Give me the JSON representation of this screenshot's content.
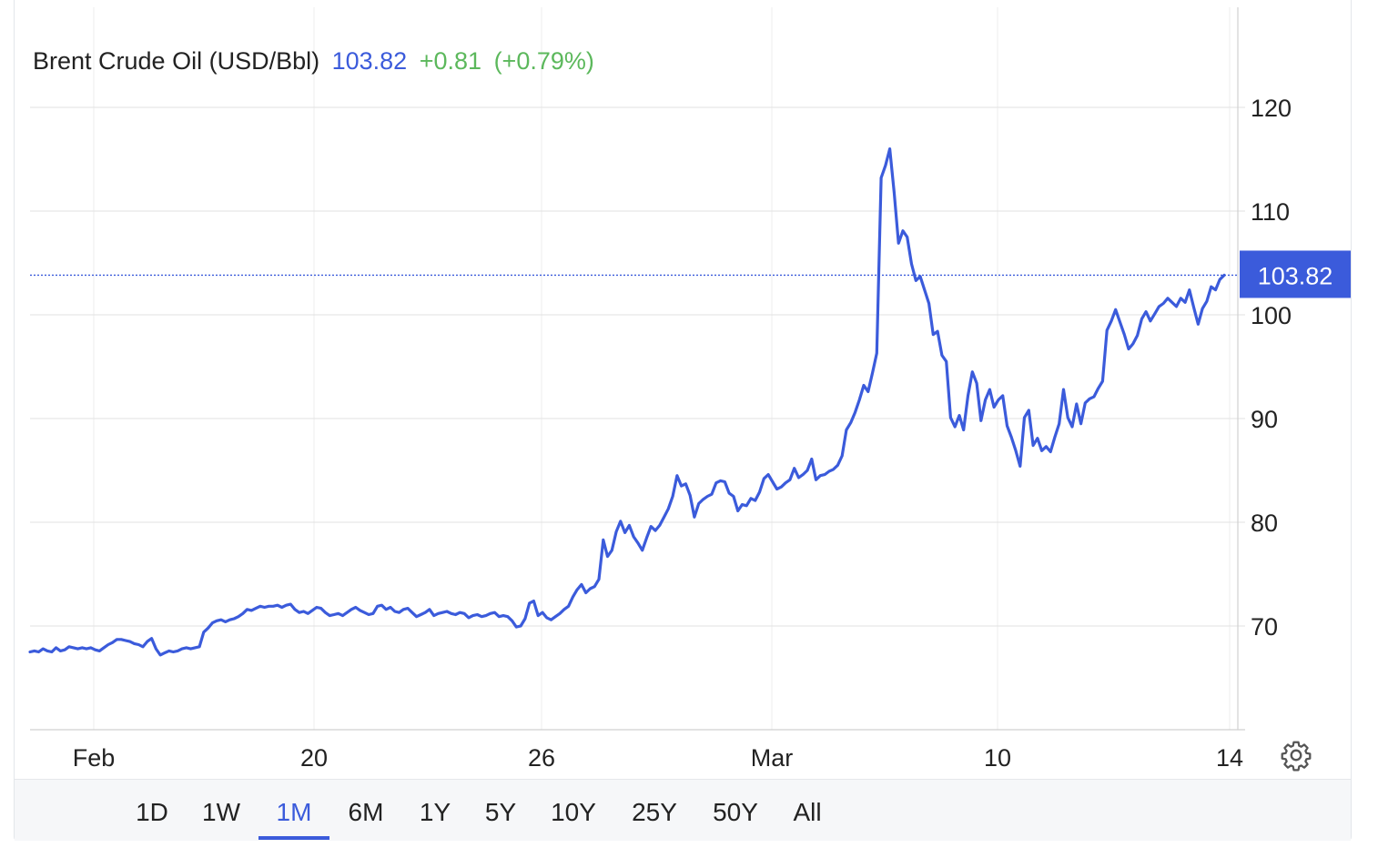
{
  "header": {
    "name": "Brent Crude Oil (USD/Bbl)",
    "price": "103.82",
    "change": "+0.81",
    "change_pct": "(+0.79%)"
  },
  "colors": {
    "line": "#3b5bdb",
    "price_tag_bg": "#3b5bdb",
    "change_positive": "#5cb85c",
    "grid": "#e8e8e8"
  },
  "ranges": [
    "1D",
    "1W",
    "1M",
    "6M",
    "1Y",
    "5Y",
    "10Y",
    "25Y",
    "50Y",
    "All"
  ],
  "active_range": "1M",
  "settings_icon": "gear-icon",
  "chart_data": {
    "type": "line",
    "title": "Brent Crude Oil (USD/Bbl)",
    "xlabel": "",
    "ylabel": "",
    "x_tick_labels": [
      "Feb",
      "20",
      "26",
      "Mar",
      "10",
      "14"
    ],
    "y_ticks": [
      70,
      80,
      90,
      100,
      110,
      120
    ],
    "ylim": [
      60,
      130
    ],
    "grid": true,
    "last_value_label": "103.82",
    "series": [
      {
        "values": [
          67.5,
          67.6,
          67.5,
          67.8,
          67.6,
          67.5,
          67.9,
          67.6,
          67.7,
          68.0,
          67.9,
          67.8,
          67.9,
          67.8,
          67.9,
          67.7,
          67.6,
          67.9,
          68.2,
          68.4,
          68.7,
          68.7,
          68.6,
          68.5,
          68.3,
          68.2,
          68.0,
          68.5,
          68.8,
          67.8,
          67.2,
          67.4,
          67.6,
          67.5,
          67.6,
          67.8,
          67.9,
          67.8,
          67.9,
          68.0,
          69.4,
          69.8,
          70.3,
          70.5,
          70.6,
          70.4,
          70.6,
          70.7,
          70.9,
          71.2,
          71.6,
          71.5,
          71.7,
          71.9,
          71.8,
          71.9,
          71.9,
          72.0,
          71.8,
          72.0,
          72.1,
          71.6,
          71.3,
          71.4,
          71.2,
          71.5,
          71.8,
          71.7,
          71.3,
          71.0,
          71.1,
          71.2,
          71.0,
          71.3,
          71.6,
          71.8,
          71.5,
          71.3,
          71.1,
          71.2,
          71.9,
          72.0,
          71.6,
          71.8,
          71.4,
          71.3,
          71.6,
          71.7,
          71.3,
          70.9,
          71.1,
          71.3,
          71.6,
          71.0,
          71.2,
          71.3,
          71.4,
          71.2,
          71.1,
          71.3,
          71.2,
          70.8,
          71.0,
          71.1,
          70.9,
          71.0,
          71.2,
          71.3,
          70.9,
          71.0,
          70.9,
          70.5,
          69.9,
          70.0,
          70.7,
          72.2,
          72.4,
          71.0,
          71.3,
          70.8,
          70.6,
          70.9,
          71.2,
          71.6,
          71.9,
          72.8,
          73.5,
          74.0,
          73.2,
          73.6,
          73.8,
          74.5,
          78.3,
          76.7,
          77.3,
          79.1,
          80.1,
          79.0,
          79.7,
          78.6,
          78.0,
          77.3,
          78.5,
          79.6,
          79.2,
          79.7,
          80.5,
          81.3,
          82.5,
          84.5,
          83.5,
          83.7,
          82.6,
          80.5,
          81.8,
          82.2,
          82.5,
          82.7,
          83.8,
          84.0,
          83.9,
          82.8,
          82.5,
          81.1,
          81.7,
          81.6,
          82.3,
          82.1,
          82.9,
          84.2,
          84.6,
          83.9,
          83.2,
          83.4,
          83.8,
          84.1,
          85.2,
          84.3,
          84.6,
          85.0,
          86.1,
          84.1,
          84.5,
          84.6,
          84.9,
          85.1,
          85.5,
          86.4,
          88.9,
          89.6,
          90.6,
          91.8,
          93.2,
          92.6,
          94.4,
          96.3,
          113.2,
          114.4,
          116.0,
          111.8,
          106.9,
          108.1,
          107.5,
          104.9,
          103.3,
          103.7,
          102.4,
          101.1,
          98.1,
          98.4,
          96.1,
          95.5,
          90.1,
          89.2,
          90.3,
          88.9,
          92.2,
          94.5,
          93.4,
          89.8,
          91.8,
          92.8,
          91.1,
          91.8,
          92.2,
          89.3,
          88.2,
          86.9,
          85.4,
          90.1,
          90.8,
          87.4,
          88.1,
          86.9,
          87.3,
          86.8,
          88.2,
          89.5,
          92.8,
          90.1,
          89.2,
          91.4,
          89.5,
          91.5,
          91.9,
          92.1,
          92.9,
          93.6,
          98.5,
          99.4,
          100.5,
          99.3,
          98.1,
          96.7,
          97.2,
          98.0,
          99.6,
          100.3,
          99.4,
          100.1,
          100.8,
          101.1,
          101.6,
          101.2,
          100.8,
          101.6,
          101.2,
          102.4,
          100.7,
          99.1,
          100.6,
          101.3,
          102.7,
          102.4,
          103.4,
          103.82
        ]
      }
    ]
  }
}
